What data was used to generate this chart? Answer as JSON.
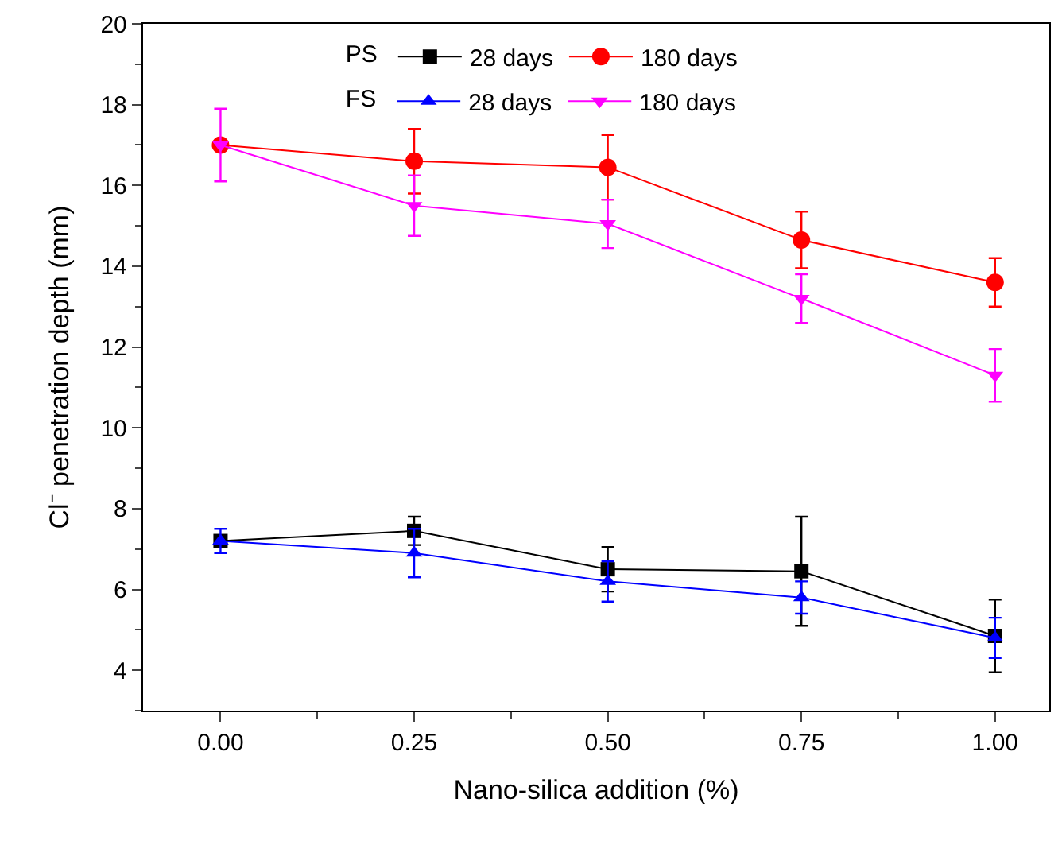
{
  "chart_data": {
    "type": "line",
    "xlabel": "Nano-silica addition (%)",
    "ylabel": "Cl⁻ penetration depth (mm)",
    "x": [
      0.0,
      0.25,
      0.5,
      0.75,
      1.0
    ],
    "xlim": [
      -0.1,
      1.07
    ],
    "xticks": [
      {
        "value": 0,
        "label": "0.00"
      },
      {
        "value": 0.25,
        "label": "0.25"
      },
      {
        "value": 0.5,
        "label": "0.50"
      },
      {
        "value": 0.75,
        "label": "0.75"
      },
      {
        "value": 1,
        "label": "1.00"
      }
    ],
    "ylim": [
      3,
      20
    ],
    "yticks": [
      4,
      6,
      8,
      10,
      12,
      14,
      16,
      18,
      20
    ],
    "legend_title": [
      "PS",
      "FS"
    ],
    "legend": "top",
    "series": [
      {
        "name": "28 days",
        "color": "#000000",
        "marker": "square",
        "values": [
          7.2,
          7.45,
          6.5,
          6.45,
          4.85
        ],
        "errors": [
          null,
          0.35,
          0.55,
          1.35,
          0.9
        ]
      },
      {
        "name": "180 days",
        "color": "#ff0000",
        "marker": "circle",
        "values": [
          17.0,
          16.6,
          16.45,
          14.65,
          13.6
        ],
        "errors": [
          null,
          0.8,
          0.8,
          0.7,
          0.6
        ]
      },
      {
        "name": "28 days",
        "color": "#0000ff",
        "marker": "triangle",
        "values": [
          7.2,
          6.9,
          6.2,
          5.8,
          4.8
        ],
        "errors": [
          0.3,
          0.6,
          0.5,
          0.4,
          0.5
        ]
      },
      {
        "name": "180 days",
        "color": "#ff00ff",
        "marker": "triangle-down",
        "values": [
          17.0,
          15.5,
          15.05,
          13.2,
          11.3
        ],
        "errors": [
          0.9,
          0.75,
          0.6,
          0.6,
          0.65
        ]
      }
    ]
  }
}
